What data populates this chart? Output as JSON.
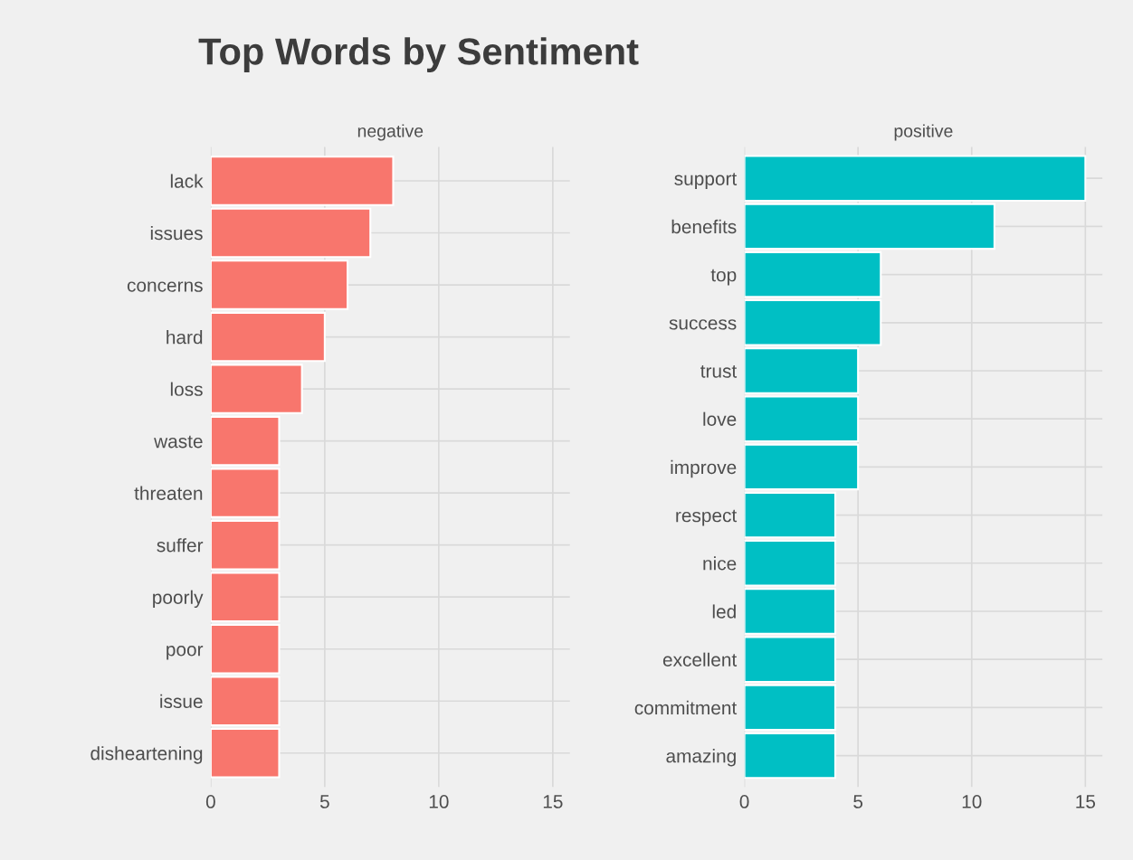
{
  "chart_data": [
    {
      "type": "bar",
      "orientation": "horizontal",
      "title": "Top Words by Sentiment",
      "subtitle": "negative",
      "categories": [
        "lack",
        "issues",
        "concerns",
        "hard",
        "loss",
        "waste",
        "threaten",
        "suffer",
        "poorly",
        "poor",
        "issue",
        "disheartening"
      ],
      "series": [
        {
          "color": "#f8766d",
          "values": [
            8,
            7,
            6,
            5,
            4,
            3,
            3,
            3,
            3,
            3,
            3,
            3
          ]
        }
      ],
      "xlim": [
        0,
        15.75
      ],
      "xticks": [
        0,
        5,
        10,
        15
      ],
      "grid": true,
      "legend": false
    },
    {
      "type": "bar",
      "orientation": "horizontal",
      "subtitle": "positive",
      "categories": [
        "support",
        "benefits",
        "top",
        "success",
        "trust",
        "love",
        "improve",
        "respect",
        "nice",
        "led",
        "excellent",
        "commitment",
        "amazing"
      ],
      "series": [
        {
          "color": "#00bfc4",
          "values": [
            15,
            11,
            6,
            6,
            5,
            5,
            5,
            4,
            4,
            4,
            4,
            4,
            4
          ]
        }
      ],
      "xlim": [
        0,
        15.75
      ],
      "xticks": [
        0,
        5,
        10,
        15
      ],
      "grid": true,
      "legend": false
    }
  ]
}
